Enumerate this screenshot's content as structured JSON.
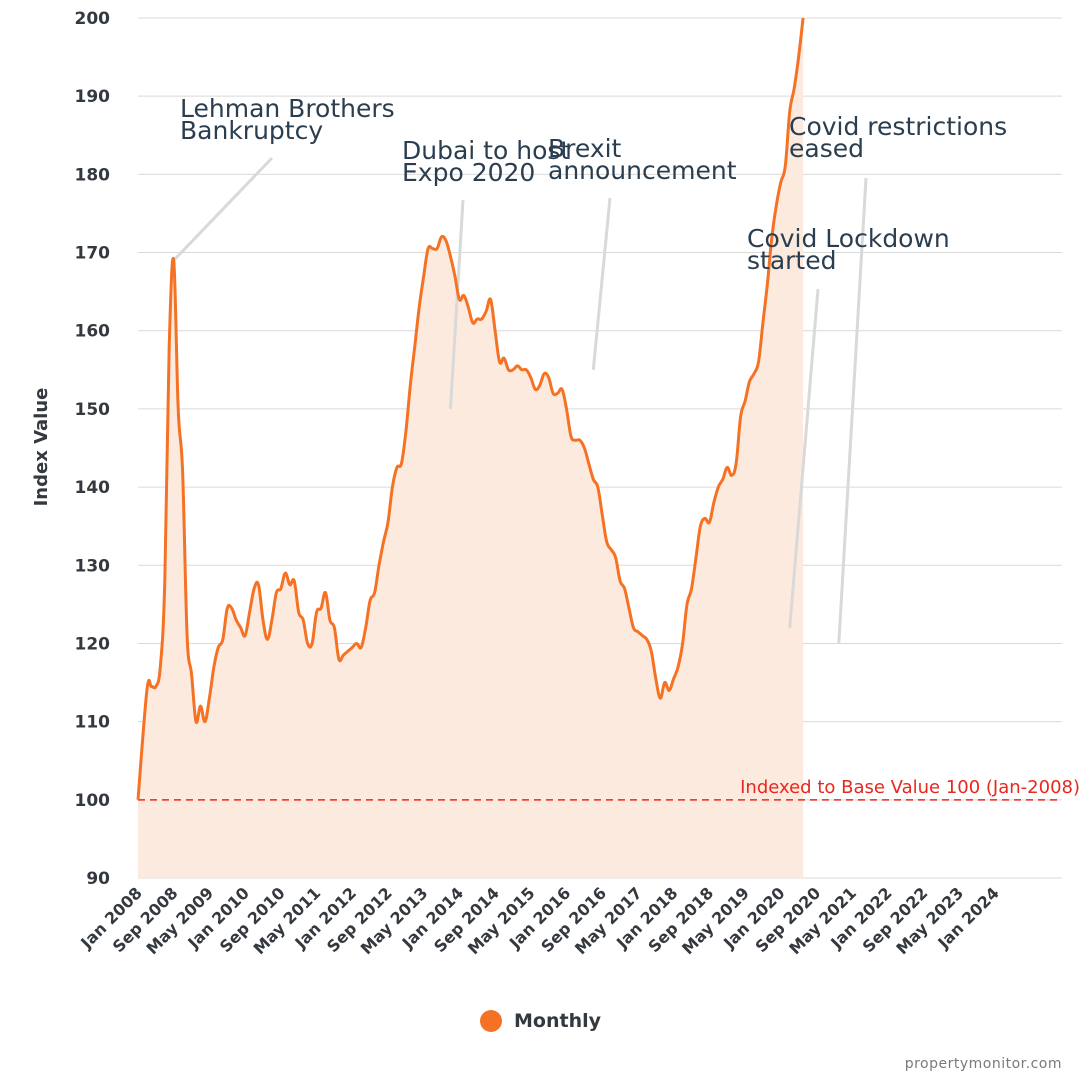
{
  "chart_data": {
    "type": "area",
    "ylabel": "Index Value",
    "ylim": [
      90,
      200
    ],
    "yticks": [
      90,
      100,
      110,
      120,
      130,
      140,
      150,
      160,
      170,
      180,
      190,
      200
    ],
    "xticks": [
      "Jan 2008",
      "Sep 2008",
      "May 2009",
      "Jan 2010",
      "Sep 2010",
      "May 2011",
      "Jan 2012",
      "Sep 2012",
      "May 2013",
      "Jan 2014",
      "Sep 2014",
      "May 2015",
      "Jan 2016",
      "Sep 2016",
      "May 2017",
      "Jan 2018",
      "Sep 2018",
      "May 2019",
      "Jan 2020",
      "Sep 2020",
      "May 2021",
      "Jan 2022",
      "Sep 2022",
      "May 2023",
      "Jan 2024"
    ],
    "xlim": [
      "Jan 2008",
      "Apr 2025"
    ],
    "grid": true,
    "legend_position": "bottom-center",
    "colors": {
      "line": "#f57224",
      "fill": "#fdeadf",
      "reference": "#e8281e",
      "grid": "#d9d9d9",
      "connector": "#d9d9d9"
    },
    "series": [
      {
        "name": "Monthly",
        "points": [
          [
            "Jan 2008",
            100
          ],
          [
            "Mar 2008",
            114
          ],
          [
            "Apr 2008",
            114.5
          ],
          [
            "May 2008",
            114.5
          ],
          [
            "Jun 2008",
            117
          ],
          [
            "Jul 2008",
            128
          ],
          [
            "Aug 2008",
            158
          ],
          [
            "Sep 2008",
            169
          ],
          [
            "Oct 2008",
            150
          ],
          [
            "Nov 2008",
            142
          ],
          [
            "Dec 2008",
            121
          ],
          [
            "Jan 2009",
            116
          ],
          [
            "Feb 2009",
            110
          ],
          [
            "Mar 2009",
            112
          ],
          [
            "Apr 2009",
            110
          ],
          [
            "May 2009",
            113
          ],
          [
            "Jun 2009",
            117
          ],
          [
            "Jul 2009",
            119.5
          ],
          [
            "Aug 2009",
            120.5
          ],
          [
            "Sep 2009",
            124.5
          ],
          [
            "Oct 2009",
            124.5
          ],
          [
            "Nov 2009",
            123
          ],
          [
            "Dec 2009",
            122
          ],
          [
            "Jan 2010",
            121
          ],
          [
            "Feb 2010",
            124
          ],
          [
            "Mar 2010",
            127
          ],
          [
            "Apr 2010",
            127.5
          ],
          [
            "May 2010",
            123
          ],
          [
            "Jun 2010",
            120.5
          ],
          [
            "Jul 2010",
            123
          ],
          [
            "Aug 2010",
            126.5
          ],
          [
            "Sep 2010",
            127
          ],
          [
            "Oct 2010",
            129
          ],
          [
            "Nov 2010",
            127.5
          ],
          [
            "Dec 2010",
            128
          ],
          [
            "Jan 2011",
            124
          ],
          [
            "Feb 2011",
            123
          ],
          [
            "Mar 2011",
            120
          ],
          [
            "Apr 2011",
            120
          ],
          [
            "May 2011",
            124
          ],
          [
            "Jun 2011",
            124.5
          ],
          [
            "Jul 2011",
            126.5
          ],
          [
            "Aug 2011",
            123
          ],
          [
            "Sep 2011",
            122
          ],
          [
            "Oct 2011",
            118
          ],
          [
            "Nov 2011",
            118.5
          ],
          [
            "Dec 2011",
            119
          ],
          [
            "Jan 2012",
            119.5
          ],
          [
            "Feb 2012",
            120
          ],
          [
            "Mar 2012",
            119.5
          ],
          [
            "Apr 2012",
            122
          ],
          [
            "May 2012",
            125.5
          ],
          [
            "Jun 2012",
            126.5
          ],
          [
            "Jul 2012",
            130
          ],
          [
            "Aug 2012",
            133
          ],
          [
            "Sep 2012",
            135.5
          ],
          [
            "Oct 2012",
            140
          ],
          [
            "Nov 2012",
            142.5
          ],
          [
            "Dec 2012",
            143
          ],
          [
            "Jan 2013",
            147
          ],
          [
            "Feb 2013",
            153
          ],
          [
            "Mar 2013",
            158
          ],
          [
            "Apr 2013",
            163
          ],
          [
            "May 2013",
            167
          ],
          [
            "Jun 2013",
            170.5
          ],
          [
            "Jul 2013",
            170.5
          ],
          [
            "Aug 2013",
            170.5
          ],
          [
            "Sep 2013",
            172
          ],
          [
            "Oct 2013",
            171.5
          ],
          [
            "Nov 2013",
            169.5
          ],
          [
            "Dec 2013",
            167
          ],
          [
            "Jan 2014",
            164
          ],
          [
            "Feb 2014",
            164.5
          ],
          [
            "Mar 2014",
            163
          ],
          [
            "Apr 2014",
            161
          ],
          [
            "May 2014",
            161.5
          ],
          [
            "Jun 2014",
            161.5
          ],
          [
            "Jul 2014",
            162.5
          ],
          [
            "Aug 2014",
            164
          ],
          [
            "Sep 2014",
            160
          ],
          [
            "Oct 2014",
            156
          ],
          [
            "Nov 2014",
            156.5
          ],
          [
            "Dec 2014",
            155
          ],
          [
            "Jan 2015",
            155
          ],
          [
            "Feb 2015",
            155.5
          ],
          [
            "Mar 2015",
            155
          ],
          [
            "Apr 2015",
            155
          ],
          [
            "May 2015",
            154
          ],
          [
            "Jun 2015",
            152.5
          ],
          [
            "Jul 2015",
            153
          ],
          [
            "Aug 2015",
            154.5
          ],
          [
            "Sep 2015",
            154
          ],
          [
            "Oct 2015",
            152
          ],
          [
            "Nov 2015",
            152
          ],
          [
            "Dec 2015",
            152.5
          ],
          [
            "Jan 2016",
            150
          ],
          [
            "Feb 2016",
            146.5
          ],
          [
            "Mar 2016",
            146
          ],
          [
            "Apr 2016",
            146
          ],
          [
            "May 2016",
            145
          ],
          [
            "Jun 2016",
            143
          ],
          [
            "Jul 2016",
            141
          ],
          [
            "Aug 2016",
            140
          ],
          [
            "Sep 2016",
            136.5
          ],
          [
            "Oct 2016",
            133
          ],
          [
            "Nov 2016",
            132
          ],
          [
            "Dec 2016",
            131
          ],
          [
            "Jan 2017",
            128
          ],
          [
            "Feb 2017",
            127
          ],
          [
            "Mar 2017",
            124.5
          ],
          [
            "Apr 2017",
            122
          ],
          [
            "May 2017",
            121.5
          ],
          [
            "Jun 2017",
            121
          ],
          [
            "Jul 2017",
            120.5
          ],
          [
            "Aug 2017",
            119
          ],
          [
            "Sep 2017",
            115.5
          ],
          [
            "Oct 2017",
            113
          ],
          [
            "Nov 2017",
            115
          ],
          [
            "Dec 2017",
            114
          ],
          [
            "Jan 2018",
            115.5
          ],
          [
            "Feb 2018",
            117
          ],
          [
            "Mar 2018",
            120
          ],
          [
            "Apr 2018",
            125
          ],
          [
            "May 2018",
            127
          ],
          [
            "Jun 2018",
            131
          ],
          [
            "Jul 2018",
            135
          ],
          [
            "Aug 2018",
            136
          ],
          [
            "Sep 2018",
            135.5
          ],
          [
            "Oct 2018",
            138
          ],
          [
            "Nov 2018",
            140
          ],
          [
            "Dec 2018",
            141
          ],
          [
            "Jan 2019",
            142.5
          ],
          [
            "Feb 2019",
            141.5
          ],
          [
            "Mar 2019",
            143
          ],
          [
            "Apr 2019",
            149
          ],
          [
            "May 2019",
            151
          ],
          [
            "Jun 2019",
            153.5
          ],
          [
            "Jul 2019",
            154.5
          ],
          [
            "Aug 2019",
            156
          ],
          [
            "Sep 2019",
            161
          ],
          [
            "Oct 2019",
            166
          ],
          [
            "Nov 2019",
            172
          ],
          [
            "Dec 2019",
            176
          ],
          [
            "Jan 2020",
            179
          ],
          [
            "Feb 2020",
            181
          ],
          [
            "Mar 2020",
            188
          ],
          [
            "Apr 2020",
            191
          ],
          [
            "May 2020",
            195
          ],
          [
            "Jun 2020",
            200
          ]
        ]
      }
    ],
    "reference_line": {
      "value": 100,
      "label": "Indexed to Base Value 100 (Jan-2008)"
    },
    "annotations": [
      {
        "text": [
          "Lehman Brothers",
          "Bankruptcy"
        ],
        "x": "Sep 2008",
        "y": 169
      },
      {
        "text": [
          "Dubai to host",
          "Expo 2020"
        ],
        "x": "Nov 2013",
        "y": 150
      },
      {
        "text": [
          "Brexit",
          "announcement"
        ],
        "x": "Jul 2016",
        "y": 155
      },
      {
        "text": [
          "Covid Lockdown",
          "started"
        ],
        "x": "Mar 2020",
        "y": 122
      },
      {
        "text": [
          "Covid restrictions",
          "eased"
        ],
        "x": "Feb 2021",
        "y": 120
      }
    ]
  },
  "legend": {
    "label": "Monthly"
  },
  "credit": "propertymonitor.com"
}
